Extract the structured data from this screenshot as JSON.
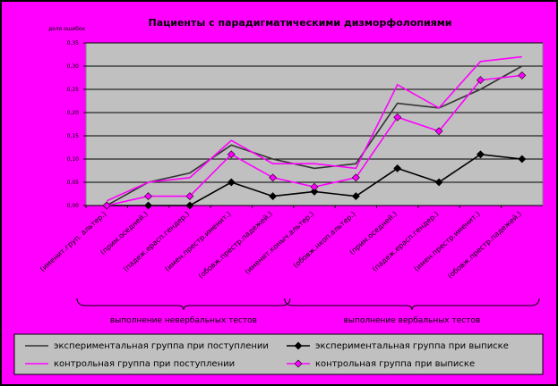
{
  "chart_data": {
    "type": "line",
    "title": "Пациенты с парадигматическими дизморфолопиями",
    "ylabel": "доля ошибок",
    "ylim": [
      0,
      0.35
    ],
    "yticks": [
      "0,00",
      "0,05",
      "0,10",
      "0,15",
      "0,20",
      "0,25",
      "0,30",
      "0,35"
    ],
    "categories": [
      "(именит.груп. альтер.)",
      "(прим.оседней.)",
      "(падеж.ерасп.гендер.)",
      "(имен.престр.именит.)",
      "(обовж.престр.падежей.)",
      "(именит.коныч.альтер.)",
      "(обовж.нкоп.альтер.)",
      "(прим.оседней.)",
      "(падеж.ерасп.гендер.)",
      "(имен.престр.именит.)",
      "(обовж.престр.падежей.)"
    ],
    "groups": [
      {
        "label": "выполнение невербальных тестов",
        "count": 5
      },
      {
        "label": "выполнение вербальных тестов",
        "count": 6
      }
    ],
    "series": [
      {
        "name": "экспериментальная группа при поступлении",
        "color": "#333333",
        "marker": "none",
        "values": [
          0.0,
          0.05,
          0.07,
          0.13,
          0.1,
          0.08,
          0.09,
          0.22,
          0.21,
          0.25,
          0.3
        ]
      },
      {
        "name": "экспериментальная группа при выписке",
        "color": "#000000",
        "marker": "diamond",
        "values": [
          0.0,
          0.0,
          0.0,
          0.05,
          0.02,
          0.03,
          0.02,
          0.08,
          0.05,
          0.11,
          0.1
        ]
      },
      {
        "name": "контрольная группа при поступлении",
        "color": "#ff00ff",
        "marker": "none",
        "values": [
          0.01,
          0.05,
          0.06,
          0.14,
          0.09,
          0.09,
          0.08,
          0.26,
          0.21,
          0.31,
          0.32
        ]
      },
      {
        "name": "контрольная группа при выписке",
        "color": "#ff00ff",
        "marker": "diamond",
        "values": [
          0.0,
          0.02,
          0.02,
          0.11,
          0.06,
          0.04,
          0.06,
          0.19,
          0.16,
          0.27,
          0.28
        ]
      }
    ],
    "grid": true,
    "legend": "bottom"
  },
  "colors": {
    "background": "#ff00ff",
    "plot_area": "#c0c0c0",
    "outer_border": "#000000"
  }
}
